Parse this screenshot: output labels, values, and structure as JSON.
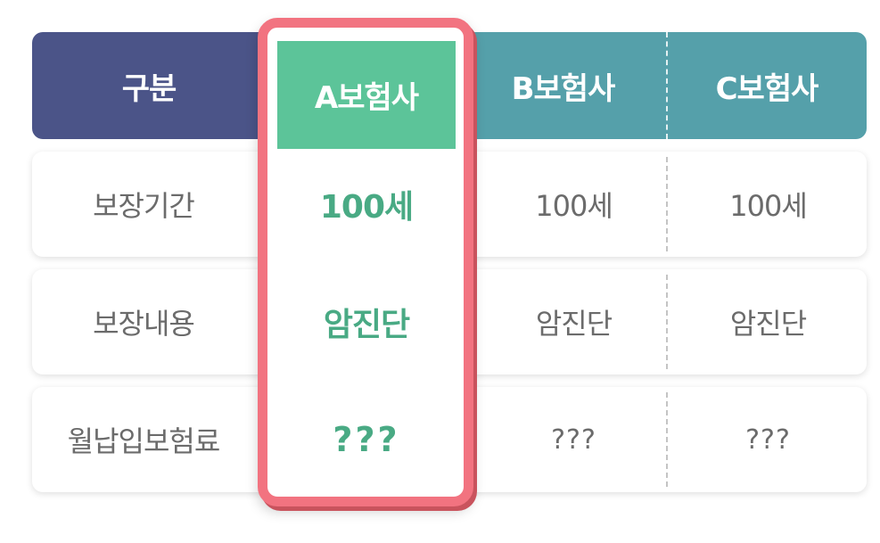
{
  "table": {
    "header": {
      "category": "구분",
      "company_a": "A보험사",
      "company_b": "B보험사",
      "company_c": "C보험사"
    },
    "rows": [
      {
        "label": "보장기간",
        "a": "100세",
        "b": "100세",
        "c": "100세"
      },
      {
        "label": "보장내용",
        "a": "암진단",
        "b": "암진단",
        "c": "암진단"
      },
      {
        "label": "월납입보험료",
        "a": "???",
        "b": "???",
        "c": "???"
      }
    ]
  },
  "colors": {
    "header_left": "#4b5488",
    "header_right": "#55a0aa",
    "highlight_header": "#5cc499",
    "highlight_text": "#49aa84",
    "highlight_border": "#f27380",
    "body_text": "#6b6b6b"
  }
}
